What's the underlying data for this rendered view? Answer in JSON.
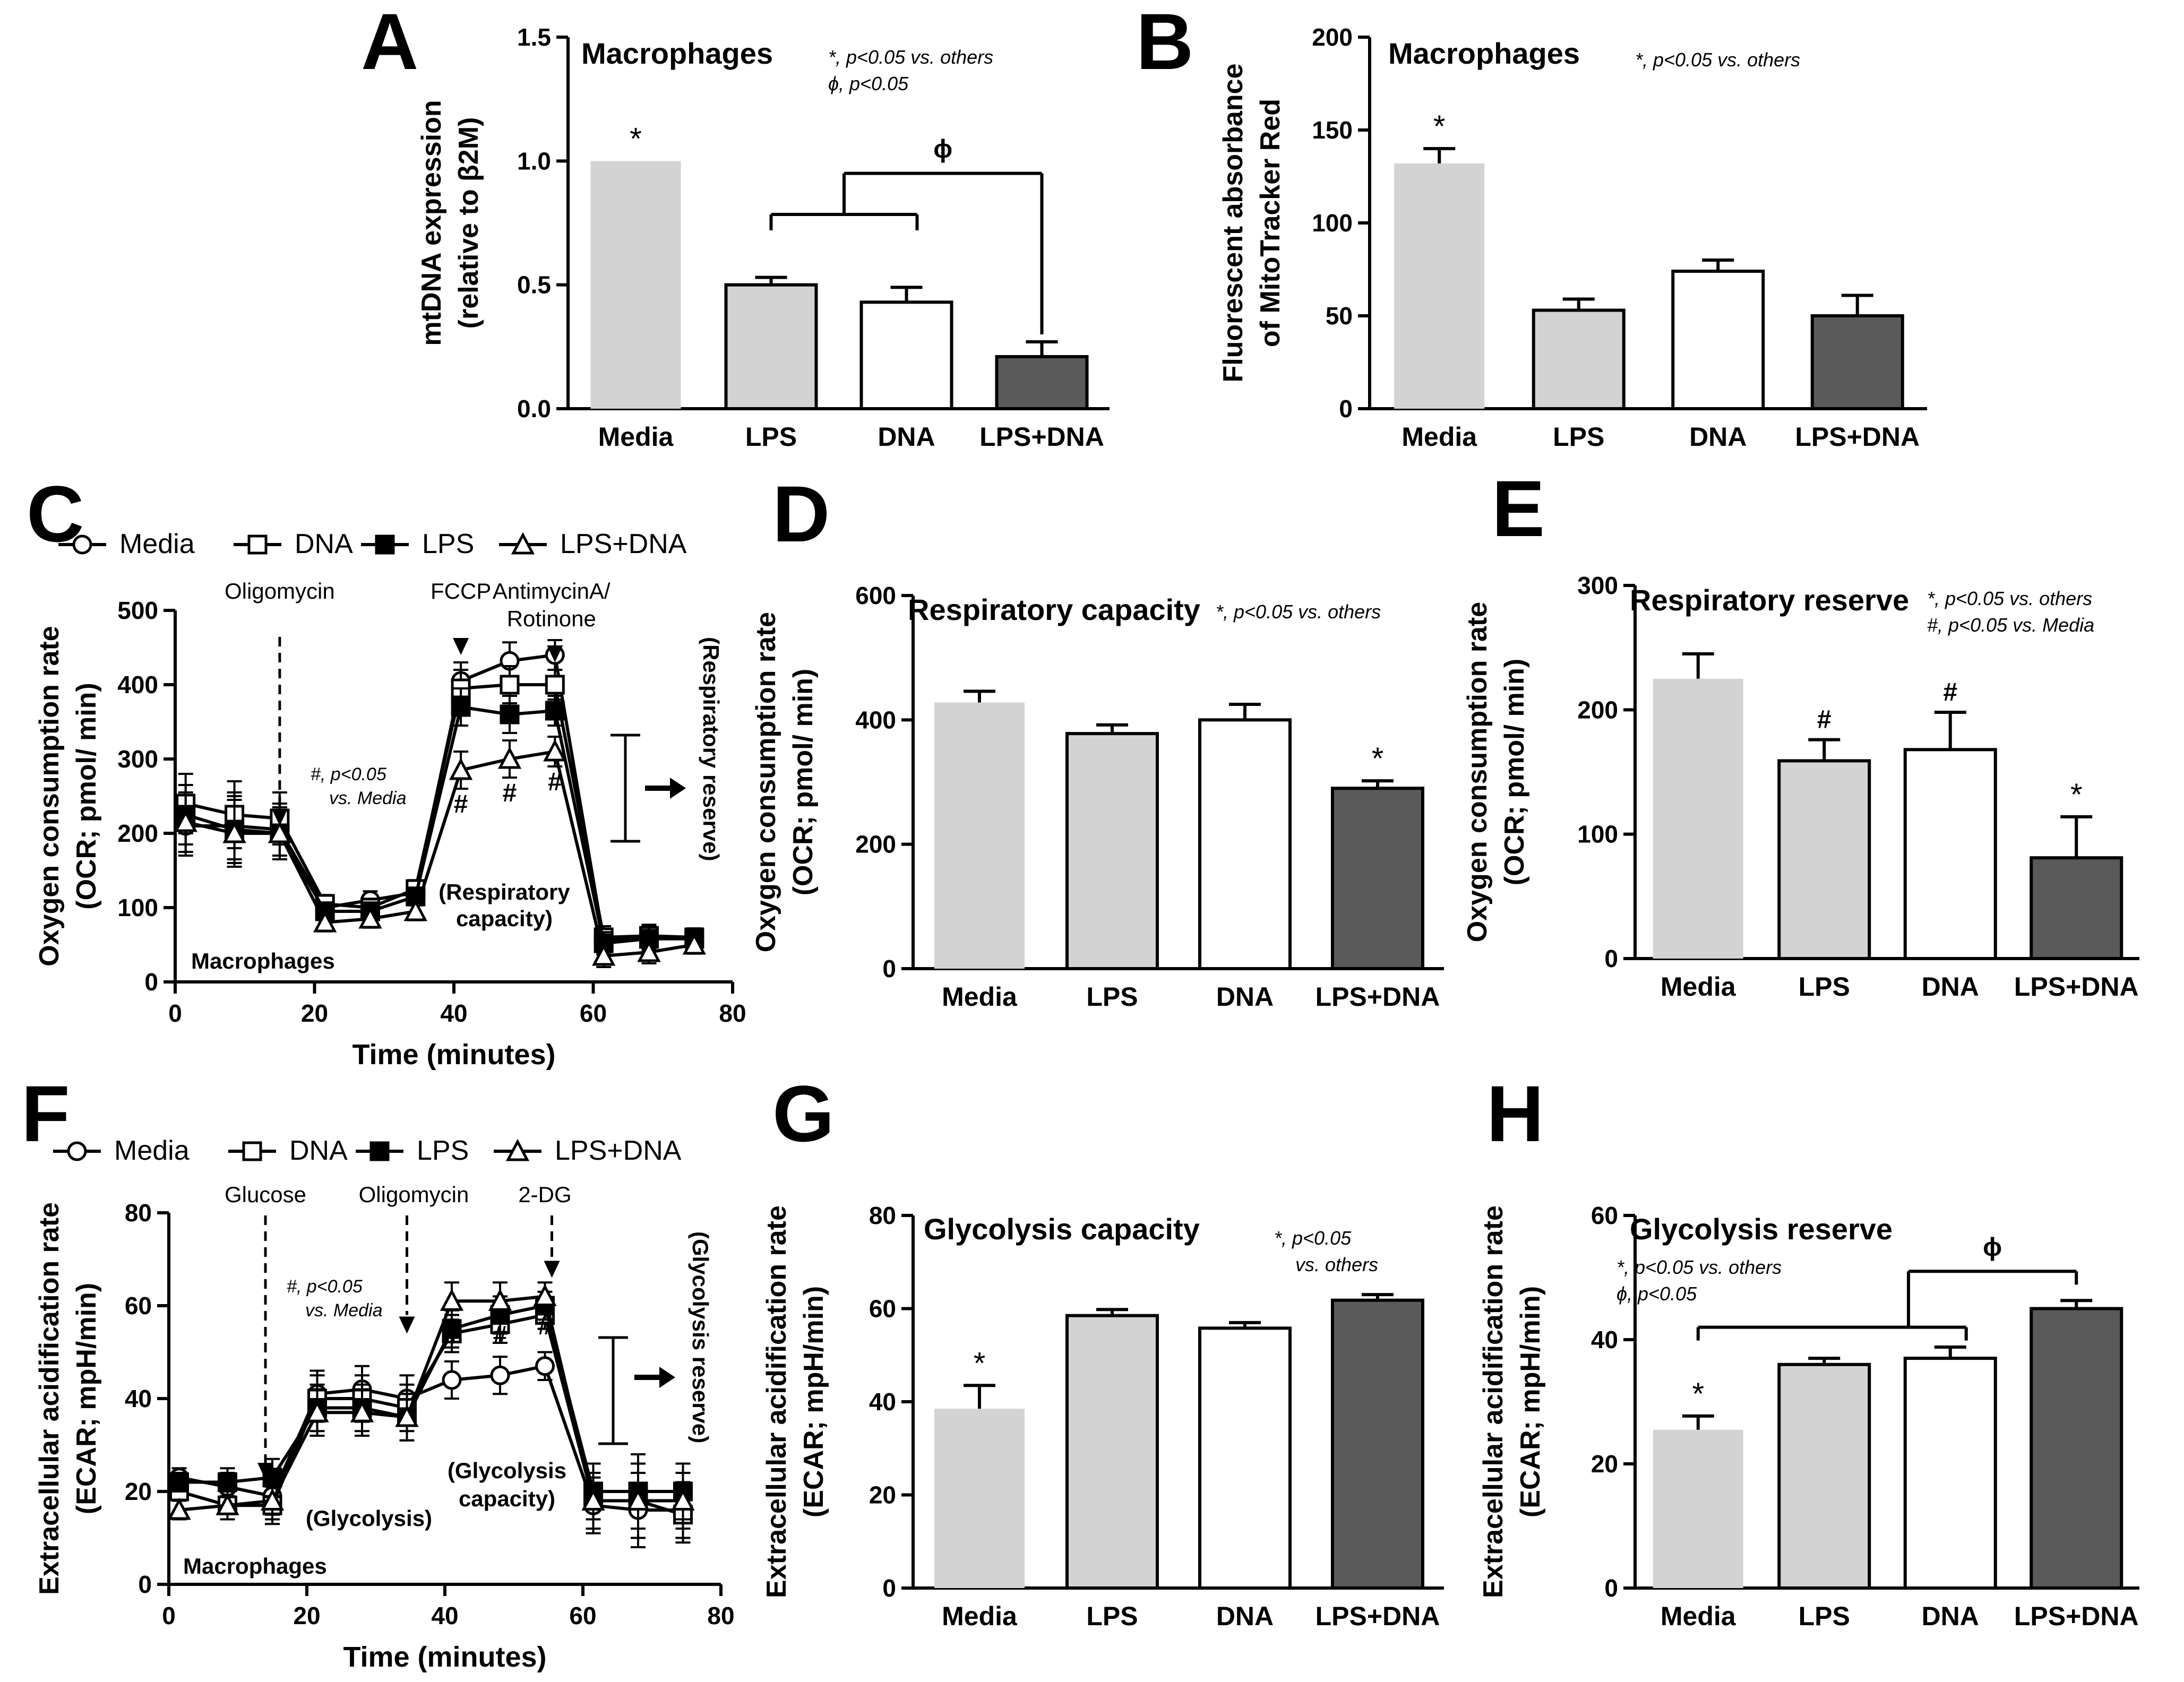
{
  "colors": {
    "media": "#d3d3d3",
    "lps": "#d3d3d3",
    "dna": "#ffffff",
    "lps_dna": "#5a5a5a",
    "axis": "#000000"
  },
  "groups": [
    "Media",
    "LPS",
    "DNA",
    "LPS+DNA"
  ],
  "chart_data": [
    {
      "id": "A",
      "type": "bar",
      "panel_label": "A",
      "title": "Macrophages",
      "annotations": [
        "*, p<0.05 vs. others",
        "ϕ, p<0.05"
      ],
      "ylabel_line1": "mtDNA expression",
      "ylabel_line2": "(relative to β2M)",
      "categories": [
        "Media",
        "LPS",
        "DNA",
        "LPS+DNA"
      ],
      "values": [
        1.0,
        0.5,
        0.43,
        0.21
      ],
      "errors": [
        0,
        0.03,
        0.06,
        0.06
      ],
      "ylim": [
        0,
        1.5
      ],
      "yticks": [
        "0.0",
        "0.5",
        "1.0",
        "1.5"
      ],
      "marks": [
        "*",
        "",
        "",
        ""
      ],
      "bracket_symbol": "ϕ"
    },
    {
      "id": "B",
      "type": "bar",
      "panel_label": "B",
      "title": "Macrophages",
      "annotations": [
        "*, p<0.05 vs. others"
      ],
      "ylabel_line1": "Fluorescent absorbance",
      "ylabel_line2": "of MitoTracker Red",
      "categories": [
        "Media",
        "LPS",
        "DNA",
        "LPS+DNA"
      ],
      "values": [
        132,
        53,
        74,
        50
      ],
      "errors": [
        8,
        6,
        6,
        11
      ],
      "ylim": [
        0,
        200
      ],
      "yticks": [
        "0",
        "50",
        "100",
        "150",
        "200"
      ],
      "marks": [
        "*",
        "",
        "",
        ""
      ]
    },
    {
      "id": "C",
      "type": "line",
      "panel_label": "C",
      "legend": [
        "Media",
        "DNA",
        "LPS",
        "LPS+DNA"
      ],
      "injections": [
        "Oligomycin",
        "FCCP",
        "AntimycinA/",
        "Rotinone"
      ],
      "annotation_line1": "#, p<0.05",
      "annotation_line2": "vs. Media",
      "region_label_1": "(Respiratory",
      "region_label_2": "capacity)",
      "side_label": "(Respiratory reserve)",
      "panel_name": "Macrophages",
      "xlabel": "Time (minutes)",
      "ylabel_line1": "Oxygen consumption rate",
      "ylabel_line2": "(OCR; pmol/ min)",
      "xlim": [
        0,
        80
      ],
      "ylim": [
        0,
        500
      ],
      "xticks": [
        "0",
        "20",
        "40",
        "60",
        "80"
      ],
      "yticks": [
        "0",
        "100",
        "200",
        "300",
        "400",
        "500"
      ],
      "x": [
        1.5,
        8.5,
        15,
        21.5,
        28,
        34.5,
        41,
        48,
        54.5,
        61.5,
        68,
        74.5
      ],
      "series": [
        {
          "name": "Media",
          "values": [
            210,
            210,
            205,
            100,
            110,
            120,
            405,
            432,
            440,
            55,
            60,
            60
          ]
        },
        {
          "name": "DNA",
          "values": [
            240,
            225,
            220,
            105,
            100,
            125,
            395,
            400,
            400,
            60,
            62,
            60
          ]
        },
        {
          "name": "LPS",
          "values": [
            225,
            205,
            200,
            95,
            95,
            115,
            370,
            360,
            365,
            52,
            58,
            58
          ]
        },
        {
          "name": "LPS+DNA",
          "values": [
            215,
            200,
            200,
            80,
            85,
            95,
            285,
            300,
            310,
            35,
            40,
            50
          ]
        }
      ],
      "errors": [
        40,
        45,
        35,
        12,
        12,
        12,
        25,
        25,
        20,
        15,
        15,
        12
      ],
      "hash_marks": [
        "#",
        "#",
        "#"
      ]
    },
    {
      "id": "D",
      "type": "bar",
      "panel_label": "D",
      "title": "Respiratory capacity",
      "annotations": [
        "*, p<0.05 vs. others"
      ],
      "ylabel_line1": "Oxygen consumption rate",
      "ylabel_line2": "(OCR; pmol/ min)",
      "categories": [
        "Media",
        "LPS",
        "DNA",
        "LPS+DNA"
      ],
      "values": [
        428,
        378,
        400,
        290
      ],
      "errors": [
        18,
        14,
        25,
        12
      ],
      "ylim": [
        0,
        600
      ],
      "yticks": [
        "0",
        "200",
        "400",
        "600"
      ],
      "marks": [
        "",
        "",
        "",
        "*"
      ]
    },
    {
      "id": "E",
      "type": "bar",
      "panel_label": "E",
      "title": "Respiratory reserve",
      "annotations": [
        "*, p<0.05 vs. others",
        "#, p<0.05 vs. Media"
      ],
      "ylabel_line1": "Oxygen consumption rate",
      "ylabel_line2": "(OCR; pmol/ min)",
      "categories": [
        "Media",
        "LPS",
        "DNA",
        "LPS+DNA"
      ],
      "values": [
        225,
        159,
        168,
        81
      ],
      "errors": [
        20,
        17,
        30,
        33
      ],
      "ylim": [
        0,
        300
      ],
      "yticks": [
        "0",
        "100",
        "200",
        "300"
      ],
      "marks": [
        "",
        "#",
        "#",
        "*"
      ]
    },
    {
      "id": "F",
      "type": "line",
      "panel_label": "F",
      "legend": [
        "Media",
        "DNA",
        "LPS",
        "LPS+DNA"
      ],
      "injections": [
        "Glucose",
        "Oligomycin",
        "2-DG"
      ],
      "annotation_line1": "#, p<0.05",
      "annotation_line2": "vs. Media",
      "region_label_1": "(Glycolysis",
      "region_label_2": "capacity)",
      "region_label_3": "(Glycolysis)",
      "side_label": "(Glycolysis reserve)",
      "panel_name": "Macrophages",
      "xlabel": "Time (minutes)",
      "ylabel_line1": "Extracellular acidification rate",
      "ylabel_line2": "(ECAR; mpH/min)",
      "xlim": [
        0,
        80
      ],
      "ylim": [
        0,
        80
      ],
      "xticks": [
        "0",
        "20",
        "40",
        "60",
        "80"
      ],
      "yticks": [
        "0",
        "20",
        "40",
        "60",
        "80"
      ],
      "x": [
        1.5,
        8.5,
        15,
        21.5,
        28,
        34.5,
        41,
        48,
        54.5,
        61.5,
        68,
        74.5
      ],
      "series": [
        {
          "name": "Media",
          "values": [
            23,
            21,
            19,
            41,
            42,
            40,
            44,
            45,
            47,
            17,
            16,
            16
          ]
        },
        {
          "name": "DNA",
          "values": [
            20,
            17,
            17,
            40,
            40,
            38,
            54,
            56,
            58,
            18,
            18,
            15
          ]
        },
        {
          "name": "LPS",
          "values": [
            22,
            22,
            23,
            38,
            38,
            36,
            55,
            58,
            60,
            20,
            20,
            20
          ]
        },
        {
          "name": "LPS+DNA",
          "values": [
            16,
            17,
            18,
            37,
            37,
            36,
            61,
            61,
            62,
            18,
            18,
            18
          ]
        }
      ],
      "errors": [
        2,
        3,
        4,
        5,
        5,
        5,
        4,
        4,
        3,
        6,
        8,
        6
      ],
      "hash_marks": [
        "#",
        "#",
        "#"
      ]
    },
    {
      "id": "G",
      "type": "bar",
      "panel_label": "G",
      "title": "Glycolysis capacity",
      "annotations": [
        "*, p<0.05",
        "vs. others"
      ],
      "ylabel_line1": "Extracellular acidification rate",
      "ylabel_line2": "(ECAR; mpH/min)",
      "categories": [
        "Media",
        "LPS",
        "DNA",
        "LPS+DNA"
      ],
      "values": [
        38.5,
        58.5,
        55.8,
        61.8
      ],
      "errors": [
        5,
        1.3,
        1.2,
        1.2
      ],
      "ylim": [
        0,
        80
      ],
      "yticks": [
        "0",
        "20",
        "40",
        "60",
        "80"
      ],
      "marks": [
        "*",
        "",
        "",
        ""
      ]
    },
    {
      "id": "H",
      "type": "bar",
      "panel_label": "H",
      "title": "Glycolysis reserve",
      "annotations": [
        "*, p<0.05 vs. others",
        "ϕ, p<0.05"
      ],
      "ylabel_line1": "Extracellular acidification rate",
      "ylabel_line2": "(ECAR; mpH/min)",
      "categories": [
        "Media",
        "LPS",
        "DNA",
        "LPS+DNA"
      ],
      "values": [
        25.5,
        36,
        37,
        45
      ],
      "errors": [
        2.2,
        1,
        1.8,
        1.3
      ],
      "ylim": [
        0,
        60
      ],
      "yticks": [
        "0",
        "20",
        "40",
        "60"
      ],
      "marks": [
        "*",
        "",
        "",
        ""
      ],
      "bracket_symbol": "ϕ"
    }
  ]
}
